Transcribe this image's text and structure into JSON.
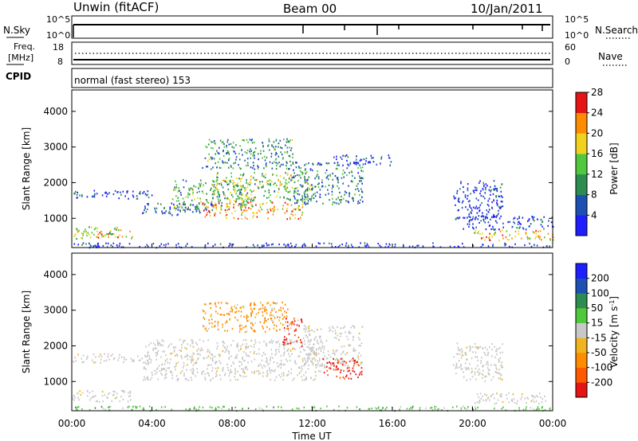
{
  "header": {
    "station": "Unwin (fitACF)",
    "beam": "Beam 00",
    "date": "10/Jan/2011"
  },
  "strips": {
    "nsky": {
      "label": "N.Sky",
      "left_ticks": [
        "10^5",
        "10^0"
      ],
      "right_ticks": [
        "10^5",
        "10^0"
      ],
      "right_label": "N.Search"
    },
    "freq": {
      "label_line1": "Freq.",
      "label_line2": "[MHz]",
      "left_ticks": [
        "18",
        "8"
      ],
      "right_ticks": [
        "60",
        "0"
      ],
      "right_label": "Nave"
    },
    "cpid": {
      "label": "CPID",
      "text": "normal (fast stereo) 153"
    }
  },
  "chart_data": [
    {
      "type": "heatmap",
      "name": "power",
      "ylabel": "Slant Range [km]",
      "ylim": [
        180,
        4600
      ],
      "yticks": [
        "1000",
        "2000",
        "3000",
        "4000"
      ],
      "xlim": [
        "00:00",
        "24:00"
      ],
      "colorbar": {
        "label": "Power [dB]",
        "ticks": [
          "4",
          "8",
          "12",
          "16",
          "20",
          "24",
          "28"
        ],
        "range": [
          0,
          30
        ],
        "colors": [
          "#1e1eff",
          "#1e50b4",
          "#2d8c50",
          "#50c83c",
          "#f0d21e",
          "#ff8c00",
          "#e61414"
        ]
      },
      "regions": [
        {
          "t0": 0.0,
          "t1": 3.0,
          "r0": 450,
          "r1": 780,
          "level": 0.55
        },
        {
          "t0": 1.2,
          "t1": 3.0,
          "r0": 480,
          "r1": 620,
          "level": 0.75
        },
        {
          "t0": 0.0,
          "t1": 4.0,
          "r0": 1550,
          "r1": 1800,
          "level": 0.15
        },
        {
          "t0": 3.5,
          "t1": 7.0,
          "r0": 1100,
          "r1": 1450,
          "level": 0.2
        },
        {
          "t0": 5.0,
          "t1": 9.0,
          "r0": 1250,
          "r1": 2100,
          "level": 0.45
        },
        {
          "t0": 6.5,
          "t1": 11.5,
          "r0": 1000,
          "r1": 1500,
          "level": 0.75
        },
        {
          "t0": 7.0,
          "t1": 12.0,
          "r0": 1500,
          "r1": 2300,
          "level": 0.5
        },
        {
          "t0": 6.5,
          "t1": 11.0,
          "r0": 2400,
          "r1": 3250,
          "level": 0.35
        },
        {
          "t0": 11.0,
          "t1": 14.5,
          "r0": 1400,
          "r1": 2600,
          "level": 0.3
        },
        {
          "t0": 13.0,
          "t1": 16.0,
          "r0": 2500,
          "r1": 2800,
          "level": 0.1
        },
        {
          "t0": 19.0,
          "t1": 21.5,
          "r0": 1000,
          "r1": 2100,
          "level": 0.1
        },
        {
          "t0": 20.0,
          "t1": 24.0,
          "r0": 400,
          "r1": 700,
          "level": 0.7
        },
        {
          "t0": 19.5,
          "t1": 24.0,
          "r0": 700,
          "r1": 1100,
          "level": 0.15
        },
        {
          "t0": 0.0,
          "t1": 24.0,
          "r0": 200,
          "r1": 330,
          "level": 0.1
        }
      ]
    },
    {
      "type": "heatmap",
      "name": "velocity",
      "ylabel": "Slant Range [km]",
      "ylim": [
        180,
        4600
      ],
      "yticks": [
        "1000",
        "2000",
        "3000",
        "4000"
      ],
      "xlim": [
        "00:00",
        "24:00"
      ],
      "xticks": [
        "00:00",
        "04:00",
        "08:00",
        "12:00",
        "16:00",
        "20:00",
        "00:00"
      ],
      "xlabel": "Time UT",
      "colorbar": {
        "label": "Velocity [m s",
        "label_sup": "-1",
        "label_close": "]",
        "ticks": [
          "-200",
          "-100",
          "-50",
          "-15",
          "15",
          "50",
          "100",
          "200"
        ],
        "colors": [
          "#e61414",
          "#ff5a00",
          "#ff8c00",
          "#f0b41e",
          "#c8c8c8",
          "#50c83c",
          "#2d8c50",
          "#1e50b4",
          "#1e1eff"
        ]
      },
      "regions": [
        {
          "t0": 0.0,
          "t1": 3.0,
          "r0": 450,
          "r1": 780,
          "cat": "gray"
        },
        {
          "t0": 0.0,
          "t1": 4.0,
          "r0": 1550,
          "r1": 1800,
          "cat": "gray"
        },
        {
          "t0": 3.5,
          "t1": 12.5,
          "r0": 1050,
          "r1": 2200,
          "cat": "gray"
        },
        {
          "t0": 6.5,
          "t1": 11.0,
          "r0": 2400,
          "r1": 3250,
          "cat": "orange"
        },
        {
          "t0": 11.5,
          "t1": 14.5,
          "r0": 1400,
          "r1": 2600,
          "cat": "gray"
        },
        {
          "t0": 12.5,
          "t1": 14.5,
          "r0": 1100,
          "r1": 1700,
          "cat": "red"
        },
        {
          "t0": 10.5,
          "t1": 11.5,
          "r0": 2000,
          "r1": 2800,
          "cat": "red"
        },
        {
          "t0": 19.0,
          "t1": 21.5,
          "r0": 1000,
          "r1": 2100,
          "cat": "gray"
        },
        {
          "t0": 20.0,
          "t1": 24.0,
          "r0": 400,
          "r1": 700,
          "cat": "gray"
        },
        {
          "t0": 0.0,
          "t1": 24.0,
          "r0": 200,
          "r1": 330,
          "cat": "green"
        }
      ]
    }
  ]
}
